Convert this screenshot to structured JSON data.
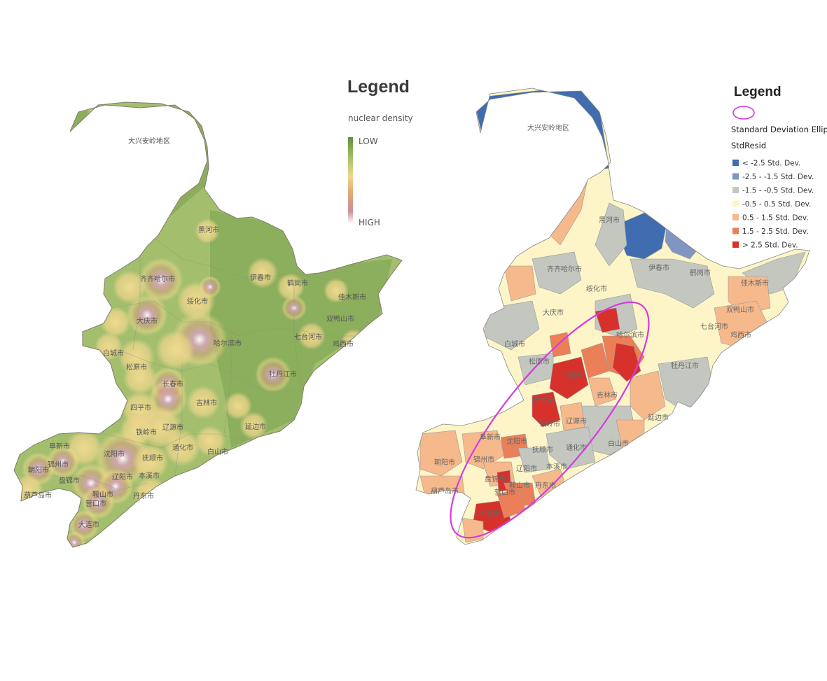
{
  "left_map": {
    "legend": {
      "title": "Legend",
      "subtitle": "nuclear density",
      "low_label": "LOW",
      "high_label": "HIGH",
      "gradient_colors": [
        "#5e8f3e",
        "#a9c26a",
        "#ecd98a",
        "#e0a878",
        "#c9909a",
        "#ffffff"
      ]
    },
    "base_color": "#a3bf6e",
    "region_labels": [
      "大兴安岭地区",
      "黑河市",
      "伊春市",
      "鹤岗市",
      "佳木斯市",
      "双鸭山市",
      "七台河市",
      "鸡西市",
      "齐齐哈尔市",
      "绥化市",
      "大庆市",
      "哈尔滨市",
      "白城市",
      "松原市",
      "长春市",
      "牡丹江市",
      "吉林市",
      "四平市",
      "铁岭市",
      "辽源市",
      "延边市",
      "阜新市",
      "沈阳市",
      "抚顺市",
      "通化市",
      "白山市",
      "朝阳市",
      "锦州市",
      "辽阳市",
      "本溪市",
      "盘锦市",
      "鞍山市",
      "丹东市",
      "葫芦岛市",
      "营口市",
      "大连市"
    ]
  },
  "right_map": {
    "legend": {
      "title": "Legend",
      "ellipse_label": "Standard Deviation Ellipse",
      "subtitle": "StdResid",
      "ellipse_color": "#d63ae0",
      "classes": [
        {
          "label": "< -2.5 Std. Dev.",
          "color": "#3f6db0"
        },
        {
          "label": "-2.5 - -1.5 Std. Dev.",
          "color": "#8195c2"
        },
        {
          "label": "-1.5 - -0.5 Std. Dev.",
          "color": "#c3c7c0"
        },
        {
          "label": "-0.5 - 0.5 Std. Dev.",
          "color": "#fdf5c7"
        },
        {
          "label": "0.5 - 1.5 Std. Dev.",
          "color": "#f6b98c"
        },
        {
          "label": "1.5 - 2.5 Std. Dev.",
          "color": "#ea7f58"
        },
        {
          "label": "> 2.5 Std. Dev.",
          "color": "#d7312b"
        }
      ]
    },
    "region_labels": [
      "大兴安岭地区",
      "黑河市",
      "伊春市",
      "鹤岗市",
      "佳木斯市",
      "双鸭山市",
      "七台河市",
      "鸡西市",
      "齐齐哈尔市",
      "绥化市",
      "大庆市",
      "哈尔滨市",
      "白城市",
      "松原市",
      "长春市",
      "牡丹江市",
      "吉林市",
      "四平市",
      "铁岭市",
      "辽源市",
      "延边市",
      "阜新市",
      "沈阳市",
      "抚顺市",
      "通化市",
      "白山市",
      "朝阳市",
      "锦州市",
      "辽阳市",
      "本溪市",
      "盘锦市",
      "鞍山市",
      "丹东市",
      "葫芦岛市",
      "营口市",
      "大连市"
    ]
  }
}
